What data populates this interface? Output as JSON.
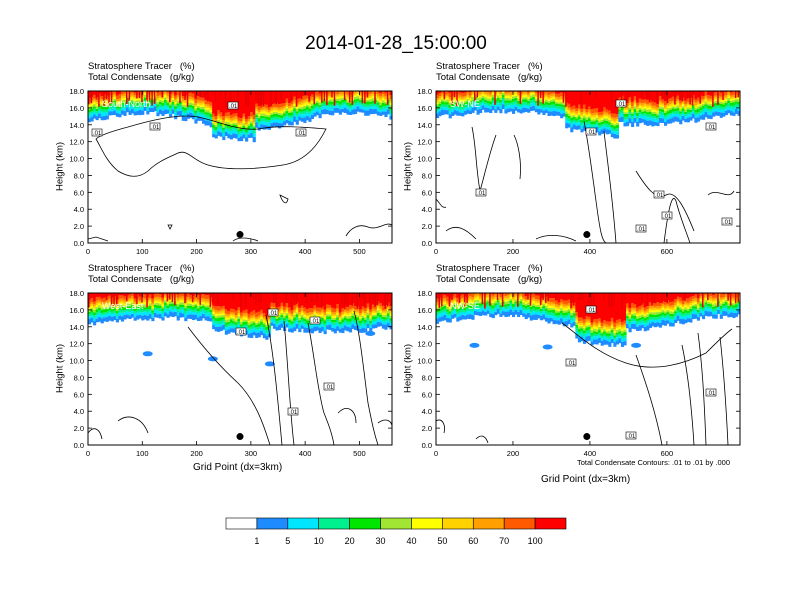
{
  "title": "2014-01-28_15:00:00",
  "colors": {
    "scale": [
      "#ffffff",
      "#1e8cff",
      "#00e6ff",
      "#00f090",
      "#00e600",
      "#a0e632",
      "#ffff00",
      "#ffd200",
      "#ffa000",
      "#ff5a00",
      "#ff0000"
    ],
    "contour": "#000000"
  },
  "chart_data": [
    {
      "type": "heatmap",
      "section": "South-North",
      "title_lines": [
        "Stratosphere Tracer   (%)",
        "Total Condensate   (g/kg)"
      ],
      "ylabel": "Height (km)",
      "xlabel": "",
      "xlim": [
        0,
        560
      ],
      "ylim": [
        0,
        18
      ],
      "xticks": [
        0,
        100,
        200,
        300,
        400,
        500
      ],
      "yticks": [
        "0.0",
        "2.0",
        "4.0",
        "6.0",
        "8.0",
        "10.0",
        "12.0",
        "14.0",
        "16.0",
        "18.0"
      ],
      "marker_x": 280,
      "contour_labels": [
        ".01",
        ".01",
        ".01",
        ".01"
      ]
    },
    {
      "type": "heatmap",
      "section": "SW-NE",
      "title_lines": [
        "Stratosphere Tracer   (%)",
        "Total Condensate   (g/kg)"
      ],
      "ylabel": "Height (km)",
      "xlabel": "",
      "xlim": [
        0,
        790
      ],
      "ylim": [
        0,
        18
      ],
      "xticks": [
        0,
        200,
        400,
        600
      ],
      "yticks": [
        "0.0",
        "2.0",
        "4.0",
        "6.0",
        "8.0",
        "10.0",
        "12.0",
        "14.0",
        "16.0",
        "18.0"
      ],
      "marker_x": 392,
      "contour_labels": [
        ".01",
        ".01",
        ".01",
        ".01",
        ".01",
        ".01",
        ".01",
        ".01"
      ]
    },
    {
      "type": "heatmap",
      "section": "West-East",
      "title_lines": [
        "Stratosphere Tracer   (%)",
        "Total Condensate   (g/kg)"
      ],
      "ylabel": "Height (km)",
      "xlabel": "Grid Point (dx=3km)",
      "xlim": [
        0,
        560
      ],
      "ylim": [
        0,
        18
      ],
      "xticks": [
        0,
        100,
        200,
        300,
        400,
        500
      ],
      "yticks": [
        "0.0",
        "2.0",
        "4.0",
        "6.0",
        "8.0",
        "10.0",
        "12.0",
        "14.0",
        "16.0",
        "18.0"
      ],
      "marker_x": 280,
      "contour_labels": [
        ".01",
        ".01",
        ".01",
        ".01",
        ".01"
      ]
    },
    {
      "type": "heatmap",
      "section": "NW-SE",
      "title_lines": [
        "Stratosphere Tracer   (%)",
        "Total Condensate   (g/kg)"
      ],
      "ylabel": "Height (km)",
      "xlabel": "Grid Point (dx=3km)",
      "xlim": [
        0,
        790
      ],
      "ylim": [
        0,
        18
      ],
      "xticks": [
        0,
        200,
        400,
        600
      ],
      "yticks": [
        "0.0",
        "2.0",
        "4.0",
        "6.0",
        "8.0",
        "10.0",
        "12.0",
        "14.0",
        "16.0",
        "18.0"
      ],
      "marker_x": 392,
      "contour_labels": [
        ".01",
        ".01",
        ".01",
        ".01"
      ]
    }
  ],
  "contour_note": "Total Condensate Contours: .01 to .01 by .000",
  "colorbar": {
    "labels": [
      "1",
      "5",
      "10",
      "20",
      "30",
      "40",
      "50",
      "60",
      "70",
      "100"
    ]
  }
}
